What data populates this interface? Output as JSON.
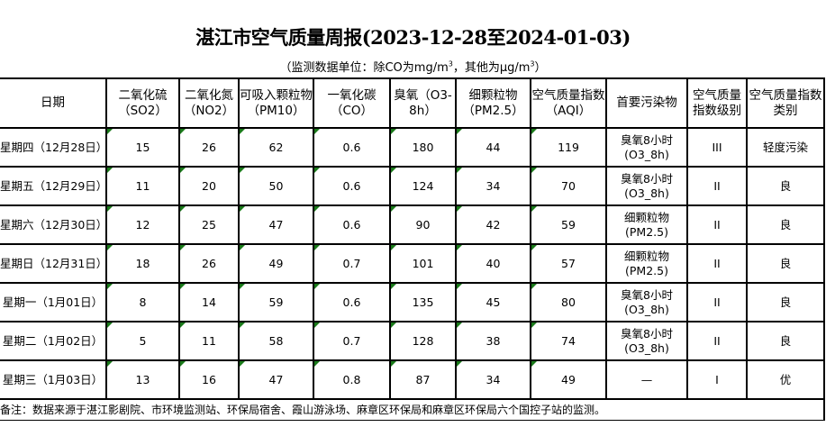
{
  "title": "湛江市空气质量周报(2023-12-28至2024-01-03)",
  "unit_note": {
    "prefix": "（监测数据单位：除CO为mg/m",
    "mid": "，其他为μg/m",
    "sup": "3",
    "suffix": "）"
  },
  "headers": [
    "日期",
    "二氧化硫（SO2）",
    "二氧化氮（NO2）",
    "可吸入颗粒物（PM10）",
    "一氧化碳（CO）",
    "臭氧（O3-8h）",
    "细颗粒物（PM2.5）",
    "空气质量指数（AQI）",
    "首要污染物",
    "空气质量指数级别",
    "空气质量指数类别"
  ],
  "rows": [
    [
      "星期四（12月28日）",
      "15",
      "26",
      "62",
      "0.6",
      "180",
      "44",
      "119",
      "臭氧8小时(O3_8h)",
      "III",
      "轻度污染"
    ],
    [
      "星期五（12月29日）",
      "11",
      "20",
      "50",
      "0.6",
      "124",
      "34",
      "70",
      "臭氧8小时(O3_8h)",
      "II",
      "良"
    ],
    [
      "星期六（12月30日）",
      "12",
      "25",
      "47",
      "0.6",
      "90",
      "42",
      "59",
      "细颗粒物(PM2.5)",
      "II",
      "良"
    ],
    [
      "星期日（12月31日）",
      "18",
      "26",
      "49",
      "0.7",
      "101",
      "40",
      "57",
      "细颗粒物(PM2.5)",
      "II",
      "良"
    ],
    [
      "星期一（1月01日）",
      "8",
      "14",
      "59",
      "0.6",
      "135",
      "45",
      "80",
      "臭氧8小时(O3_8h)",
      "II",
      "良"
    ],
    [
      "星期二（1月02日）",
      "5",
      "11",
      "58",
      "0.7",
      "128",
      "38",
      "74",
      "臭氧8小时(O3_8h)",
      "II",
      "良"
    ],
    [
      "星期三（1月03日）",
      "13",
      "16",
      "47",
      "0.8",
      "87",
      "34",
      "49",
      "—",
      "I",
      "优"
    ]
  ],
  "footnote": "备注：数据来源于湛江影剧院、市环境监测站、环保局宿舍、霞山游泳场、麻章区环保局和麻章区环保局六个国控子站的监测。",
  "colors": {
    "marker": "#1a7a1a",
    "border": "#000000"
  }
}
